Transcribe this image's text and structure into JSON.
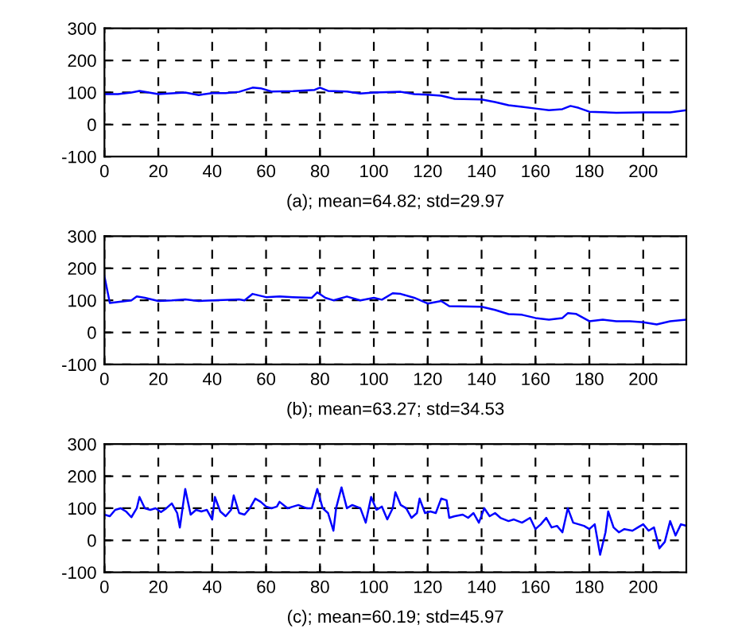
{
  "chart_data": [
    {
      "type": "line",
      "xlabel": "(a); mean=64.82; std=29.97",
      "xlim": [
        0,
        216
      ],
      "ylim": [
        -100,
        300
      ],
      "xticks": [
        0,
        20,
        40,
        60,
        80,
        100,
        120,
        140,
        160,
        180,
        200
      ],
      "yticks": [
        -100,
        0,
        100,
        200,
        300
      ],
      "grid": true,
      "line_style": "solid",
      "marker": "none",
      "series": [
        {
          "color": "#0000ff",
          "x": [
            0,
            5,
            10,
            13,
            20,
            30,
            35,
            40,
            45,
            50,
            55,
            58,
            62,
            70,
            78,
            80,
            83,
            90,
            95,
            100,
            110,
            115,
            120,
            125,
            130,
            140,
            145,
            150,
            155,
            160,
            165,
            170,
            173,
            176,
            180,
            190,
            200,
            210,
            216
          ],
          "values": [
            95,
            95,
            100,
            105,
            95,
            100,
            92,
            98,
            98,
            102,
            115,
            113,
            103,
            104,
            108,
            115,
            105,
            103,
            97,
            100,
            102,
            95,
            93,
            90,
            80,
            78,
            70,
            60,
            55,
            50,
            45,
            48,
            58,
            52,
            40,
            37,
            38,
            38,
            45
          ]
        }
      ]
    },
    {
      "type": "line",
      "xlabel": "(b); mean=63.27; std=34.53",
      "xlim": [
        0,
        216
      ],
      "ylim": [
        -100,
        300
      ],
      "xticks": [
        0,
        20,
        40,
        60,
        80,
        100,
        120,
        140,
        160,
        180,
        200
      ],
      "yticks": [
        -100,
        0,
        100,
        200,
        300
      ],
      "grid": true,
      "line_style": "solid",
      "marker": "none",
      "series": [
        {
          "color": "#0000ff",
          "x": [
            0,
            2,
            5,
            10,
            12,
            15,
            20,
            25,
            30,
            35,
            40,
            50,
            52,
            55,
            60,
            65,
            70,
            77,
            79,
            82,
            85,
            90,
            95,
            100,
            103,
            107,
            110,
            115,
            120,
            125,
            128,
            140,
            145,
            150,
            155,
            160,
            165,
            170,
            172,
            175,
            180,
            185,
            190,
            195,
            200,
            205,
            210,
            216
          ],
          "values": [
            175,
            92,
            95,
            100,
            112,
            108,
            98,
            100,
            103,
            98,
            100,
            103,
            100,
            120,
            110,
            112,
            110,
            108,
            125,
            108,
            100,
            112,
            100,
            108,
            102,
            122,
            120,
            108,
            90,
            98,
            82,
            80,
            70,
            57,
            55,
            45,
            40,
            45,
            60,
            58,
            35,
            40,
            35,
            35,
            32,
            25,
            35,
            40
          ]
        }
      ]
    },
    {
      "type": "line",
      "xlabel": "(c); mean=60.19; std=45.97",
      "xlim": [
        0,
        216
      ],
      "ylim": [
        -100,
        300
      ],
      "xticks": [
        0,
        20,
        40,
        60,
        80,
        100,
        120,
        140,
        160,
        180,
        200
      ],
      "yticks": [
        -100,
        0,
        100,
        200,
        300
      ],
      "grid": true,
      "line_style": "solid",
      "marker": "none",
      "series": [
        {
          "color": "#0000ff",
          "x": [
            0,
            2,
            4,
            6,
            8,
            10,
            12,
            13,
            15,
            17,
            19,
            21,
            23,
            25,
            27,
            28,
            30,
            32,
            34,
            36,
            38,
            40,
            41,
            43,
            45,
            47,
            48,
            50,
            52,
            54,
            56,
            58,
            60,
            62,
            64,
            65,
            68,
            70,
            72,
            75,
            77,
            79,
            81,
            83,
            85,
            86,
            88,
            90,
            92,
            95,
            97,
            99,
            101,
            103,
            105,
            107,
            108,
            110,
            112,
            114,
            116,
            117,
            119,
            121,
            123,
            125,
            127,
            128,
            130,
            133,
            135,
            137,
            139,
            141,
            143,
            145,
            147,
            150,
            152,
            155,
            158,
            160,
            162,
            164,
            166,
            168,
            170,
            172,
            174,
            176,
            178,
            180,
            182,
            184,
            186,
            187,
            189,
            191,
            193,
            196,
            198,
            200,
            202,
            204,
            206,
            208,
            210,
            212,
            214,
            216
          ],
          "values": [
            80,
            75,
            95,
            100,
            90,
            72,
            100,
            135,
            100,
            95,
            100,
            88,
            100,
            115,
            85,
            40,
            160,
            80,
            95,
            90,
            95,
            65,
            135,
            90,
            75,
            95,
            140,
            85,
            80,
            100,
            130,
            120,
            105,
            100,
            105,
            120,
            100,
            105,
            110,
            100,
            100,
            160,
            100,
            85,
            30,
            100,
            165,
            100,
            110,
            100,
            55,
            135,
            95,
            105,
            65,
            100,
            150,
            110,
            100,
            70,
            85,
            130,
            85,
            90,
            85,
            130,
            125,
            70,
            75,
            80,
            70,
            85,
            55,
            100,
            75,
            85,
            70,
            60,
            65,
            55,
            70,
            35,
            50,
            70,
            40,
            45,
            25,
            100,
            55,
            50,
            45,
            35,
            50,
            -45,
            25,
            90,
            40,
            25,
            35,
            30,
            40,
            50,
            30,
            40,
            -25,
            -5,
            60,
            15,
            50,
            45
          ]
        }
      ]
    }
  ]
}
